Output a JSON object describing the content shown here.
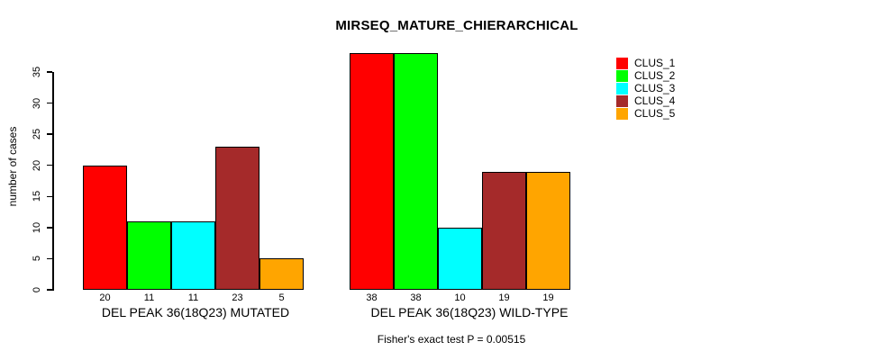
{
  "figure": {
    "title": "MIRSEQ_MATURE_CHIERARCHICAL",
    "subtitle": "Fisher's exact test P = 0.00515",
    "y_axis_label": "number of cases"
  },
  "chart_data": {
    "type": "bar",
    "title": "MIRSEQ_MATURE_CHIERARCHICAL",
    "ylabel": "number of cases",
    "xlabel": "",
    "ylim": [
      0,
      38
    ],
    "yticks": [
      0,
      5,
      10,
      15,
      20,
      25,
      30,
      35
    ],
    "grid": false,
    "legend_position": "right",
    "categories": [
      "DEL PEAK 36(18Q23) MUTATED",
      "DEL PEAK 36(18Q23) WILD-TYPE"
    ],
    "series": [
      {
        "name": "CLUS_1",
        "color": "#FF0000",
        "values": [
          20,
          38
        ]
      },
      {
        "name": "CLUS_2",
        "color": "#00FF00",
        "values": [
          11,
          38
        ]
      },
      {
        "name": "CLUS_3",
        "color": "#00FFFF",
        "values": [
          11,
          10
        ]
      },
      {
        "name": "CLUS_4",
        "color": "#A52A2A",
        "values": [
          23,
          19
        ]
      },
      {
        "name": "CLUS_5",
        "color": "#FFA500",
        "values": [
          5,
          19
        ]
      }
    ],
    "bar_value_labels": [
      [
        20,
        11,
        11,
        23,
        5
      ],
      [
        38,
        38,
        10,
        19,
        19
      ]
    ],
    "annotation": "Fisher's exact test P = 0.00515"
  }
}
